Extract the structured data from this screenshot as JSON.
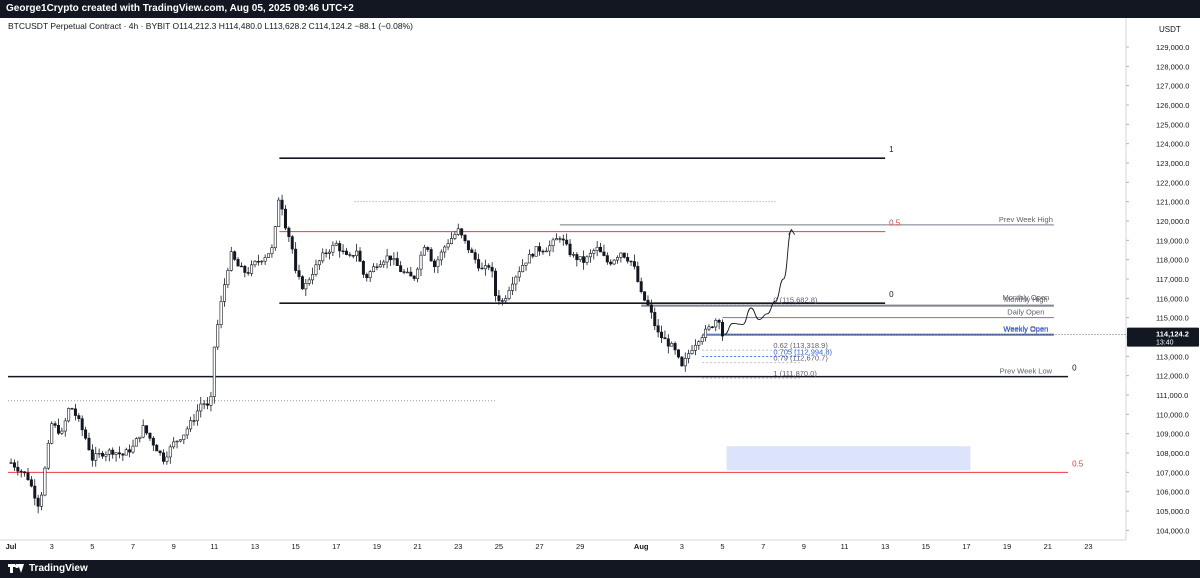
{
  "header": {
    "caption": "George1Crypto created with TradingView.com, Aug 05, 2025 09:46 UTC+2"
  },
  "footer": {
    "brand": "TradingView"
  },
  "chart_data": {
    "type": "candlestick",
    "symbol_line": "BTCUSDT Perpetual Contract · 4h · BYBIT  O114,212.3  H114,480.0  L113,628.2  C114,124.2  −88.1 (−0.08%)",
    "currency": "USDT",
    "y_axis": {
      "min": 104000,
      "max": 130000,
      "step": 1000,
      "side": "right"
    },
    "x_ticks": [
      "Jul",
      "3",
      "5",
      "7",
      "9",
      "11",
      "13",
      "15",
      "17",
      "19",
      "21",
      "23",
      "25",
      "27",
      "29",
      "Aug",
      "3",
      "5",
      "7",
      "9",
      "11",
      "13",
      "15",
      "17",
      "19",
      "21",
      "23"
    ],
    "x_ticks_day": [
      1,
      3,
      5,
      7,
      9,
      11,
      13,
      15,
      17,
      19,
      21,
      23,
      25,
      27,
      29,
      32,
      34,
      36,
      38,
      40,
      42,
      44,
      46,
      48,
      50,
      52,
      54
    ],
    "x_range_day": [
      0.85,
      55.8
    ],
    "last_price": {
      "value": 114124.2,
      "label": "114,124.2",
      "countdown": "13:40"
    },
    "candle_path": [
      [
        1.0,
        107500
      ],
      [
        1.8,
        106800
      ],
      [
        2.4,
        105200
      ],
      [
        2.7,
        107400
      ],
      [
        3.0,
        109500
      ],
      [
        3.5,
        109000
      ],
      [
        3.9,
        110500
      ],
      [
        4.3,
        109700
      ],
      [
        4.7,
        108700
      ],
      [
        5.0,
        107700
      ],
      [
        5.5,
        108000
      ],
      [
        6.0,
        108100
      ],
      [
        6.5,
        107900
      ],
      [
        7.0,
        108300
      ],
      [
        7.5,
        109300
      ],
      [
        8.0,
        108500
      ],
      [
        8.5,
        107700
      ],
      [
        9.0,
        108500
      ],
      [
        9.5,
        109000
      ],
      [
        10.0,
        109800
      ],
      [
        10.4,
        110700
      ],
      [
        10.8,
        110200
      ],
      [
        11.0,
        113500
      ],
      [
        11.4,
        116200
      ],
      [
        11.8,
        118300
      ],
      [
        12.2,
        117600
      ],
      [
        12.6,
        117300
      ],
      [
        13.0,
        117800
      ],
      [
        13.5,
        118200
      ],
      [
        13.9,
        118600
      ],
      [
        14.2,
        121500
      ],
      [
        14.5,
        119800
      ],
      [
        14.8,
        118800
      ],
      [
        15.0,
        117300
      ],
      [
        15.4,
        116500
      ],
      [
        15.8,
        117300
      ],
      [
        16.4,
        118300
      ],
      [
        17.0,
        118800
      ],
      [
        17.6,
        118000
      ],
      [
        18.0,
        118500
      ],
      [
        18.4,
        117000
      ],
      [
        19.0,
        117800
      ],
      [
        19.6,
        118200
      ],
      [
        20.2,
        117400
      ],
      [
        20.8,
        117000
      ],
      [
        21.4,
        119000
      ],
      [
        21.8,
        117600
      ],
      [
        22.4,
        118800
      ],
      [
        23.0,
        119500
      ],
      [
        23.6,
        118400
      ],
      [
        24.2,
        117400
      ],
      [
        24.6,
        117800
      ],
      [
        24.8,
        116200
      ],
      [
        25.2,
        115800
      ],
      [
        25.6,
        116800
      ],
      [
        26.2,
        117800
      ],
      [
        26.8,
        118500
      ],
      [
        27.4,
        118600
      ],
      [
        28.0,
        119200
      ],
      [
        28.6,
        118200
      ],
      [
        29.2,
        117900
      ],
      [
        29.8,
        118600
      ],
      [
        30.4,
        117800
      ],
      [
        31.0,
        118400
      ],
      [
        31.6,
        117800
      ],
      [
        32.0,
        116200
      ],
      [
        32.4,
        115500
      ],
      [
        32.8,
        114200
      ],
      [
        33.2,
        113800
      ],
      [
        33.6,
        113400
      ],
      [
        34.0,
        112400
      ],
      [
        34.4,
        113300
      ],
      [
        34.8,
        113900
      ],
      [
        35.4,
        114500
      ],
      [
        35.8,
        115100
      ],
      [
        36.0,
        114100
      ]
    ],
    "projection_path": [
      [
        36.1,
        114130
      ],
      [
        36.5,
        114700
      ],
      [
        37.0,
        114650
      ],
      [
        37.4,
        115500
      ],
      [
        37.8,
        114900
      ],
      [
        38.2,
        115200
      ],
      [
        38.6,
        115850
      ],
      [
        39.0,
        117000
      ],
      [
        39.4,
        119550
      ]
    ],
    "levels": [
      {
        "kind": "fib",
        "price": 123250,
        "from_day": 14.2,
        "to_day": 44.0,
        "label": "1",
        "label_color": "#131722"
      },
      {
        "kind": "fib",
        "price": 119450,
        "from_day": 14.2,
        "to_day": 44.0,
        "label": "0.5",
        "label_color": "#f23645",
        "line_color": "#f23645"
      },
      {
        "kind": "fib",
        "price": 115750,
        "from_day": 14.2,
        "to_day": 44.0,
        "label": "0",
        "label_color": "#131722"
      },
      {
        "kind": "fib",
        "price": 111950,
        "from_day": 0.85,
        "to_day": 53.0,
        "label": "0",
        "label_color": "#131722"
      },
      {
        "kind": "fib",
        "price": 107000,
        "from_day": 0.85,
        "to_day": 53.0,
        "label": "0.5",
        "label_color": "#f23645",
        "line_color": "#f23645"
      }
    ],
    "horizontal_refs": [
      {
        "price": 119800,
        "from_day": 28.0,
        "to_day": 52.3,
        "label": "Prev Week High"
      },
      {
        "price": 115600,
        "from_day": 32.0,
        "to_day": 52.3,
        "label": "Monthly Open"
      },
      {
        "price": 115650,
        "from_day": 32.0,
        "to_day": 52.3,
        "label": "Monthly High"
      },
      {
        "price": 115000,
        "from_day": 36.0,
        "to_day": 52.3,
        "label": "Daily Open"
      },
      {
        "price": 114150,
        "from_day": 35.0,
        "to_day": 52.3,
        "label": "Weekly Open"
      },
      {
        "price": 114100,
        "from_day": 35.0,
        "to_day": 52.3,
        "label": "Weekly Open",
        "color": "#2962ff"
      },
      {
        "price": 111950,
        "from_day": 28.0,
        "to_day": 52.3,
        "label": "Prev Week Low"
      }
    ],
    "retracements": [
      {
        "label": "0 (115,682.8)",
        "price": 115682.8
      },
      {
        "label": "0.62 (113,318.9)",
        "price": 113318.9
      },
      {
        "label": "0.705 (112,994.8)",
        "price": 112994.8,
        "color": "#2962ff"
      },
      {
        "label": "0.79 (112,670.7)",
        "price": 112670.7
      },
      {
        "label": "1 (111,870.0)",
        "price": 111870.0
      }
    ],
    "dotted_levels": [
      {
        "price": 121000,
        "from_day": 17.9,
        "to_day": 38.6
      },
      {
        "price": 110700,
        "from_day": 0.85,
        "to_day": 24.8
      }
    ],
    "zone": {
      "from_day": 36.2,
      "to_day": 48.2,
      "price_high": 108350,
      "price_low": 107100,
      "color": "#dbe4fb"
    }
  }
}
